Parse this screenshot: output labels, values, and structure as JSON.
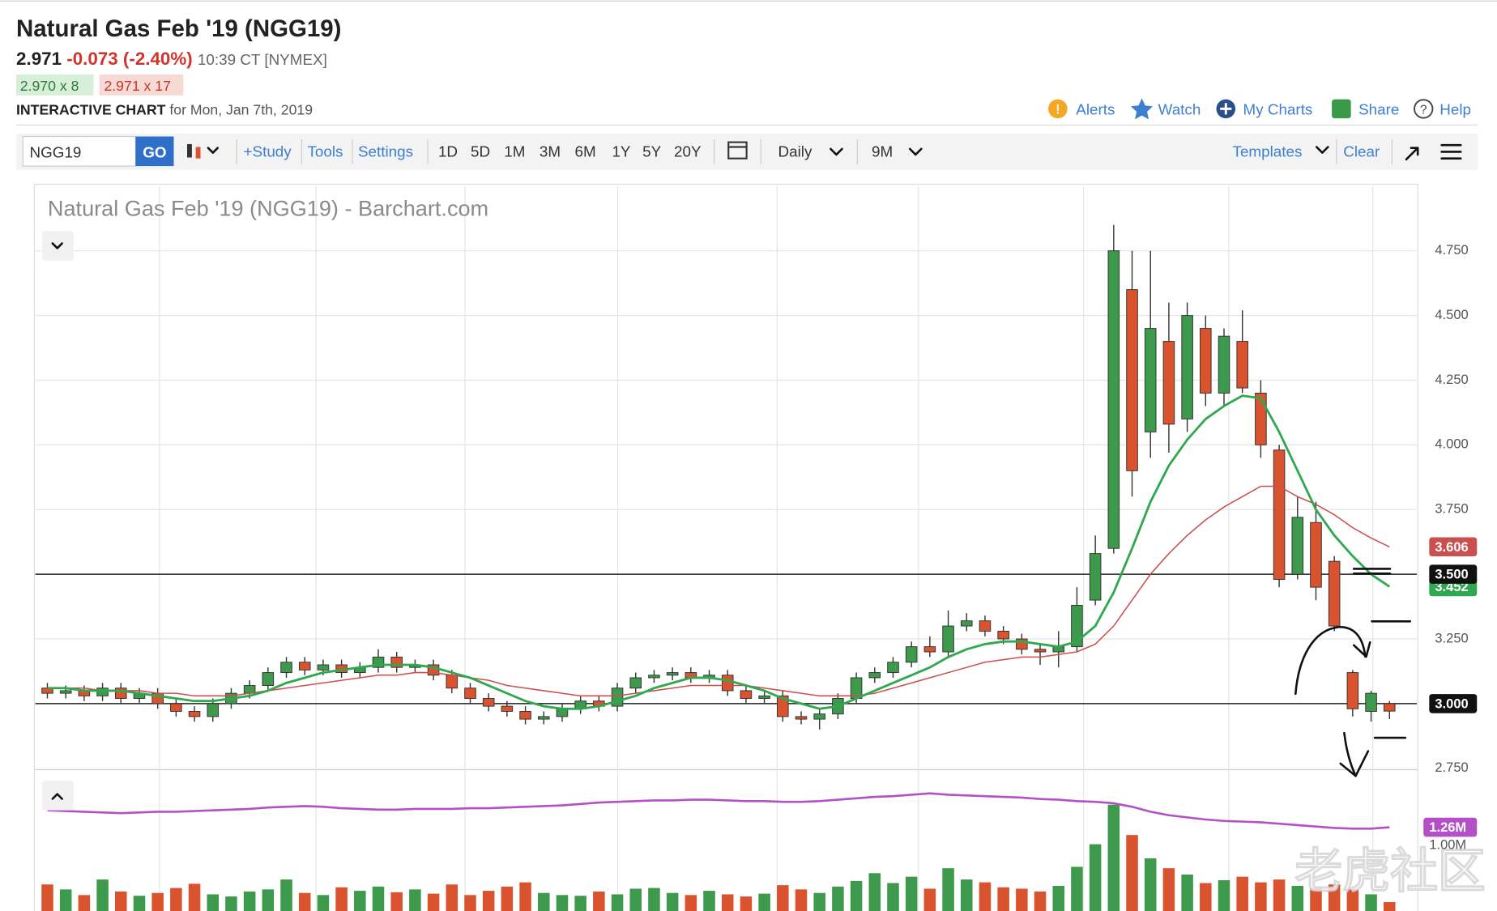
{
  "header": {
    "title": "Natural Gas Feb '19 (NGG19)",
    "last": "2.971",
    "change": "-0.073",
    "change_pct": "(-2.40%)",
    "time": "10:39 CT [NYMEX]",
    "bid": "2.970 x 8",
    "ask": "2.971 x 17",
    "section": "INTERACTIVE CHART",
    "date": "for Mon, Jan 7th, 2019",
    "links": [
      "Alerts",
      "Watch",
      "My Charts",
      "Share",
      "Help"
    ]
  },
  "toolbar": {
    "symbol": "NGG19",
    "go": "GO",
    "study": "+Study",
    "tools": "Tools",
    "settings": "Settings",
    "periods": [
      "1D",
      "5D",
      "1M",
      "3M",
      "6M",
      "1Y",
      "5Y",
      "20Y"
    ],
    "interval": "Daily",
    "range": "9M",
    "templates": "Templates",
    "clear": "Clear"
  },
  "watermark": "老虎社区",
  "chart_data": {
    "type": "candlestick",
    "title": "Natural Gas Feb '19 (NGG19) - Barchart.com",
    "up_color": "#3d9a4c",
    "down_color": "#d9532e",
    "ylim": [
      2.75,
      5.0
    ],
    "yticks": [
      {
        "value": 2.75,
        "label": "2.750"
      },
      {
        "value": 3.0,
        "label": "3.000"
      },
      {
        "value": 3.25,
        "label": "3.250"
      },
      {
        "value": 3.5,
        "label": "3.500"
      },
      {
        "value": 3.75,
        "label": "3.750"
      },
      {
        "value": 4.0,
        "label": "4.000"
      },
      {
        "value": 4.25,
        "label": "4.250"
      },
      {
        "value": 4.5,
        "label": "4.500"
      },
      {
        "value": 4.75,
        "label": "4.750"
      }
    ],
    "grid": true,
    "ohlc": [
      [
        3.06,
        3.08,
        3.02,
        3.04
      ],
      [
        3.04,
        3.07,
        3.02,
        3.05
      ],
      [
        3.05,
        3.07,
        3.01,
        3.03
      ],
      [
        3.03,
        3.08,
        3.01,
        3.06
      ],
      [
        3.06,
        3.08,
        3.0,
        3.02
      ],
      [
        3.02,
        3.06,
        3.0,
        3.04
      ],
      [
        3.04,
        3.06,
        2.98,
        3.0
      ],
      [
        3.0,
        3.02,
        2.95,
        2.97
      ],
      [
        2.97,
        2.99,
        2.93,
        2.95
      ],
      [
        2.95,
        3.02,
        2.93,
        3.0
      ],
      [
        3.0,
        3.06,
        2.98,
        3.04
      ],
      [
        3.04,
        3.09,
        3.02,
        3.07
      ],
      [
        3.07,
        3.14,
        3.05,
        3.12
      ],
      [
        3.12,
        3.18,
        3.1,
        3.16
      ],
      [
        3.16,
        3.18,
        3.11,
        3.13
      ],
      [
        3.13,
        3.17,
        3.11,
        3.15
      ],
      [
        3.15,
        3.17,
        3.1,
        3.12
      ],
      [
        3.12,
        3.16,
        3.1,
        3.14
      ],
      [
        3.14,
        3.21,
        3.12,
        3.18
      ],
      [
        3.18,
        3.2,
        3.12,
        3.14
      ],
      [
        3.14,
        3.17,
        3.12,
        3.15
      ],
      [
        3.15,
        3.17,
        3.09,
        3.11
      ],
      [
        3.11,
        3.13,
        3.04,
        3.06
      ],
      [
        3.06,
        3.08,
        3.0,
        3.02
      ],
      [
        3.02,
        3.04,
        2.97,
        2.99
      ],
      [
        2.99,
        3.01,
        2.95,
        2.97
      ],
      [
        2.97,
        2.99,
        2.92,
        2.94
      ],
      [
        2.94,
        2.97,
        2.92,
        2.95
      ],
      [
        2.95,
        3.0,
        2.93,
        2.98
      ],
      [
        2.98,
        3.03,
        2.96,
        3.01
      ],
      [
        3.01,
        3.03,
        2.97,
        2.99
      ],
      [
        2.99,
        3.08,
        2.97,
        3.06
      ],
      [
        3.06,
        3.12,
        3.04,
        3.1
      ],
      [
        3.1,
        3.13,
        3.08,
        3.11
      ],
      [
        3.11,
        3.14,
        3.09,
        3.12
      ],
      [
        3.12,
        3.14,
        3.08,
        3.1
      ],
      [
        3.1,
        3.13,
        3.08,
        3.11
      ],
      [
        3.11,
        3.13,
        3.03,
        3.05
      ],
      [
        3.05,
        3.07,
        3.0,
        3.02
      ],
      [
        3.02,
        3.05,
        3.0,
        3.03
      ],
      [
        3.03,
        3.05,
        2.93,
        2.95
      ],
      [
        2.95,
        2.97,
        2.92,
        2.94
      ],
      [
        2.94,
        2.98,
        2.9,
        2.96
      ],
      [
        2.96,
        3.04,
        2.94,
        3.02
      ],
      [
        3.02,
        3.12,
        3.0,
        3.1
      ],
      [
        3.1,
        3.14,
        3.08,
        3.12
      ],
      [
        3.12,
        3.18,
        3.1,
        3.16
      ],
      [
        3.16,
        3.24,
        3.14,
        3.22
      ],
      [
        3.22,
        3.26,
        3.18,
        3.2
      ],
      [
        3.2,
        3.36,
        3.18,
        3.3
      ],
      [
        3.3,
        3.35,
        3.28,
        3.32
      ],
      [
        3.32,
        3.34,
        3.26,
        3.28
      ],
      [
        3.28,
        3.3,
        3.23,
        3.25
      ],
      [
        3.25,
        3.27,
        3.19,
        3.21
      ],
      [
        3.21,
        3.23,
        3.15,
        3.2
      ],
      [
        3.2,
        3.28,
        3.14,
        3.22
      ],
      [
        3.22,
        3.45,
        3.2,
        3.38
      ],
      [
        3.4,
        3.65,
        3.38,
        3.58
      ],
      [
        3.6,
        4.85,
        3.58,
        4.75
      ],
      [
        4.6,
        4.75,
        3.8,
        3.9
      ],
      [
        4.05,
        4.75,
        3.95,
        4.45
      ],
      [
        4.4,
        4.55,
        3.97,
        4.08
      ],
      [
        4.1,
        4.55,
        4.05,
        4.5
      ],
      [
        4.45,
        4.5,
        4.15,
        4.2
      ],
      [
        4.2,
        4.45,
        4.15,
        4.42
      ],
      [
        4.4,
        4.52,
        4.2,
        4.22
      ],
      [
        4.2,
        4.25,
        3.95,
        4.0
      ],
      [
        3.98,
        4.0,
        3.45,
        3.48
      ],
      [
        3.5,
        3.8,
        3.48,
        3.72
      ],
      [
        3.7,
        3.78,
        3.4,
        3.45
      ],
      [
        3.55,
        3.57,
        3.28,
        3.3
      ],
      [
        3.12,
        3.13,
        2.95,
        2.98
      ],
      [
        2.97,
        3.05,
        2.93,
        3.04
      ],
      [
        3.0,
        3.01,
        2.94,
        2.971
      ]
    ],
    "ma_fast": {
      "color": "#2fa84f",
      "values": [
        3.06,
        3.06,
        3.05,
        3.05,
        3.05,
        3.04,
        3.03,
        3.02,
        3.01,
        3.01,
        3.02,
        3.03,
        3.05,
        3.08,
        3.1,
        3.12,
        3.13,
        3.14,
        3.15,
        3.15,
        3.15,
        3.14,
        3.12,
        3.1,
        3.07,
        3.04,
        3.01,
        2.99,
        2.98,
        2.98,
        2.99,
        3.01,
        3.03,
        3.06,
        3.08,
        3.1,
        3.1,
        3.09,
        3.07,
        3.05,
        3.02,
        3.0,
        2.98,
        2.99,
        3.02,
        3.05,
        3.08,
        3.11,
        3.14,
        3.18,
        3.21,
        3.23,
        3.24,
        3.24,
        3.23,
        3.22,
        3.24,
        3.3,
        3.43,
        3.6,
        3.78,
        3.92,
        4.02,
        4.1,
        4.15,
        4.19,
        4.18,
        4.05,
        3.9,
        3.75,
        3.65,
        3.57,
        3.5,
        3.452
      ]
    },
    "ma_slow": {
      "color": "#c9504f",
      "values": [
        3.06,
        3.06,
        3.06,
        3.05,
        3.05,
        3.05,
        3.04,
        3.04,
        3.03,
        3.03,
        3.03,
        3.04,
        3.05,
        3.06,
        3.07,
        3.08,
        3.09,
        3.1,
        3.11,
        3.11,
        3.12,
        3.12,
        3.11,
        3.1,
        3.09,
        3.07,
        3.06,
        3.05,
        3.04,
        3.03,
        3.03,
        3.03,
        3.04,
        3.05,
        3.06,
        3.07,
        3.07,
        3.07,
        3.07,
        3.06,
        3.05,
        3.04,
        3.03,
        3.03,
        3.03,
        3.04,
        3.06,
        3.08,
        3.1,
        3.12,
        3.14,
        3.16,
        3.17,
        3.18,
        3.18,
        3.19,
        3.2,
        3.23,
        3.3,
        3.4,
        3.5,
        3.58,
        3.65,
        3.71,
        3.76,
        3.8,
        3.84,
        3.84,
        3.8,
        3.77,
        3.73,
        3.68,
        3.64,
        3.606
      ]
    },
    "markers": [
      {
        "value": 3.606,
        "color": "#c9504f"
      },
      {
        "value": 3.452,
        "color": "#2fa84f"
      },
      {
        "value": 3.5,
        "label": "3.500",
        "color": "#111111",
        "line": true
      },
      {
        "value": 3.0,
        "label": "3.000",
        "color": "#111111",
        "line": true
      }
    ],
    "volume": {
      "ylim": [
        0,
        2000000
      ],
      "yticks": [
        {
          "value": 1000000,
          "label": "1.00M"
        }
      ],
      "values": [
        450000,
        380000,
        300000,
        520000,
        350000,
        290000,
        330000,
        400000,
        460000,
        310000,
        280000,
        350000,
        380000,
        520000,
        330000,
        300000,
        410000,
        360000,
        420000,
        340000,
        380000,
        320000,
        450000,
        300000,
        360000,
        420000,
        480000,
        330000,
        300000,
        290000,
        350000,
        310000,
        390000,
        400000,
        330000,
        300000,
        360000,
        310000,
        280000,
        320000,
        440000,
        380000,
        330000,
        420000,
        500000,
        610000,
        470000,
        560000,
        390000,
        680000,
        520000,
        480000,
        410000,
        390000,
        350000,
        430000,
        700000,
        1020000,
        1580000,
        1150000,
        820000,
        680000,
        590000,
        470000,
        510000,
        560000,
        480000,
        520000,
        430000,
        400000,
        450000,
        380000,
        310000,
        200000
      ],
      "line": {
        "color": "#b44fc8",
        "values": [
          1500000,
          1490000,
          1480000,
          1470000,
          1460000,
          1470000,
          1480000,
          1480000,
          1490000,
          1500000,
          1510000,
          1520000,
          1540000,
          1550000,
          1560000,
          1550000,
          1530000,
          1520000,
          1510000,
          1510000,
          1520000,
          1520000,
          1520000,
          1530000,
          1530000,
          1540000,
          1550000,
          1560000,
          1570000,
          1590000,
          1610000,
          1620000,
          1630000,
          1640000,
          1640000,
          1650000,
          1650000,
          1640000,
          1630000,
          1630000,
          1620000,
          1620000,
          1630000,
          1650000,
          1670000,
          1690000,
          1700000,
          1720000,
          1740000,
          1720000,
          1710000,
          1700000,
          1690000,
          1680000,
          1660000,
          1650000,
          1630000,
          1620000,
          1600000,
          1550000,
          1480000,
          1430000,
          1400000,
          1370000,
          1350000,
          1340000,
          1330000,
          1310000,
          1290000,
          1270000,
          1250000,
          1240000,
          1240000,
          1260000
        ]
      },
      "marker": {
        "value": 1260000,
        "label": "1.26M",
        "color": "#b44fc8"
      }
    }
  }
}
